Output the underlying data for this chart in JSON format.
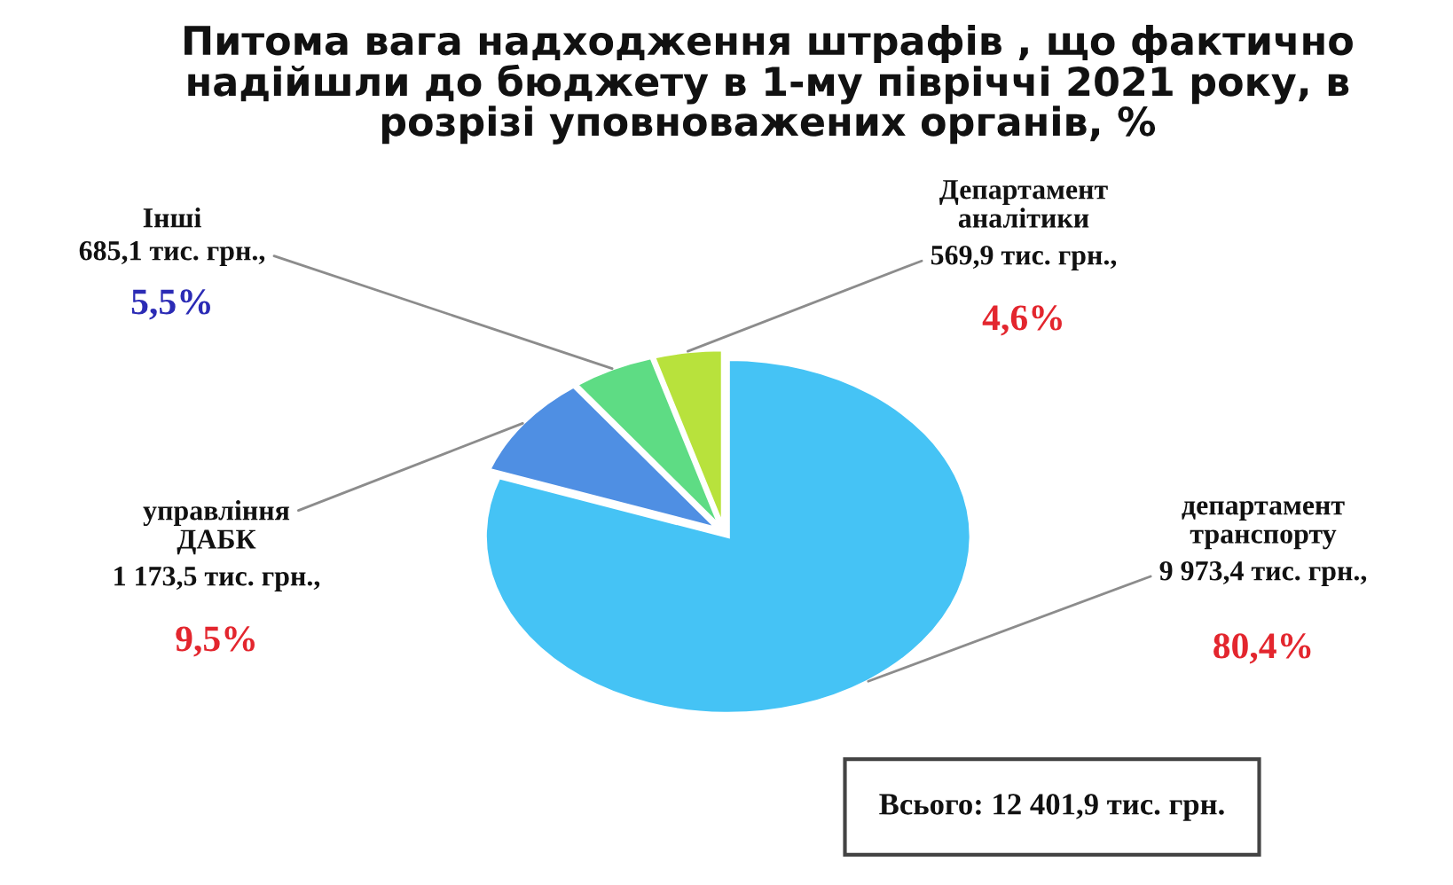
{
  "chart_data": {
    "type": "pie",
    "title": "Питома вага надходження штрафів , що фактично надійшли до бюджету в 1-му півріччі 2021 року, в розрізі уповноважених органів, %",
    "categories": [
      "департамент транспорту",
      "управління ДАБК",
      "Інші",
      "Департамент аналітики"
    ],
    "values": [
      9973.4,
      1173.5,
      685.1,
      569.9
    ],
    "colors": [
      "#45c3f5",
      "#4f8fe3",
      "#5edc84",
      "#b8e23c"
    ],
    "value_labels": [
      "9 973,4 тис. грн.,",
      "1 173,5 тис. грн.,",
      "685,1 тис. грн.,",
      "569,9 тис. грн.,"
    ],
    "annotations": [
      "Всього: 12 401,9 тис. грн.",
      "80,4%",
      "9,5%",
      "5,5%",
      "4,6%"
    ]
  }
}
